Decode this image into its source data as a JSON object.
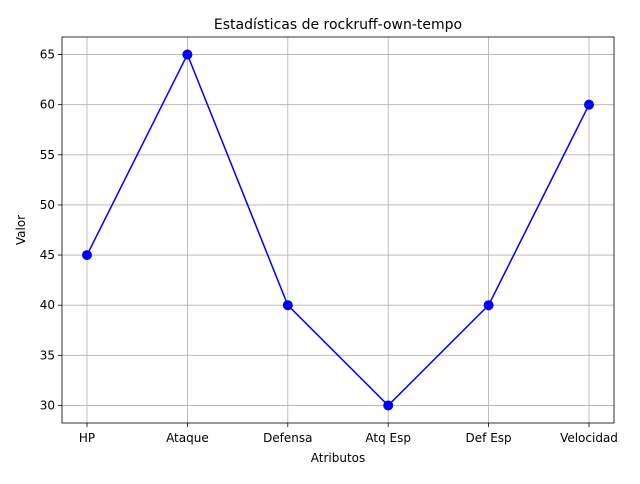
{
  "chart_data": {
    "type": "line",
    "title": "Estadísticas de rockruff-own-tempo",
    "xlabel": "Atributos",
    "ylabel": "Valor",
    "categories": [
      "HP",
      "Ataque",
      "Defensa",
      "Atq Esp",
      "Def Esp",
      "Velocidad"
    ],
    "series": [
      {
        "values": [
          45,
          65,
          40,
          30,
          40,
          60
        ],
        "color": "#0000ff",
        "marker": "circle"
      }
    ],
    "ylim": [
      28.25,
      66.75
    ],
    "yticks": [
      30,
      35,
      40,
      45,
      50,
      55,
      60,
      65
    ],
    "grid": true,
    "legend": "none"
  }
}
